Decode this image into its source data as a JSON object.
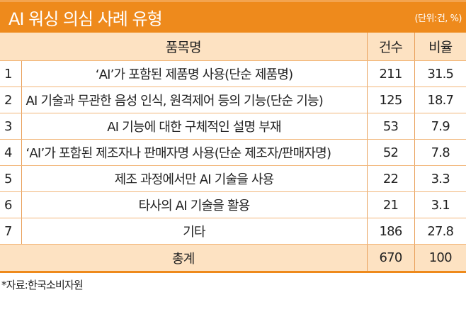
{
  "title": "AI 워싱 의심 사례 유형",
  "unit": "(단위:건, %)",
  "colors": {
    "accent": "#ee8a1c",
    "header_bg": "#fde2c2"
  },
  "headers": {
    "name": "품목명",
    "count": "건수",
    "ratio": "비율"
  },
  "rows": [
    {
      "no": "1",
      "name": "‘AI’가 포함된 제품명 사용(단순 제품명)",
      "count": "211",
      "ratio": "31.5"
    },
    {
      "no": "2",
      "name": "AI 기술과 무관한 음성 인식, 원격제어 등의 기능(단순 기능)",
      "count": "125",
      "ratio": "18.7"
    },
    {
      "no": "3",
      "name": "AI 기능에 대한 구체적인 설명 부재",
      "count": "53",
      "ratio": "7.9"
    },
    {
      "no": "4",
      "name": "‘AI’가 포함된 제조자나 판매자명 사용(단순 제조자/판매자명)",
      "count": "52",
      "ratio": "7.8"
    },
    {
      "no": "5",
      "name": "제조 과정에서만 AI 기술을 사용",
      "count": "22",
      "ratio": "3.3"
    },
    {
      "no": "6",
      "name": "타사의 AI 기술을 활용",
      "count": "21",
      "ratio": "3.1"
    },
    {
      "no": "7",
      "name": "기타",
      "count": "186",
      "ratio": "27.8"
    }
  ],
  "total": {
    "label": "총계",
    "count": "670",
    "ratio": "100"
  },
  "source": "*자료:한국소비자원"
}
